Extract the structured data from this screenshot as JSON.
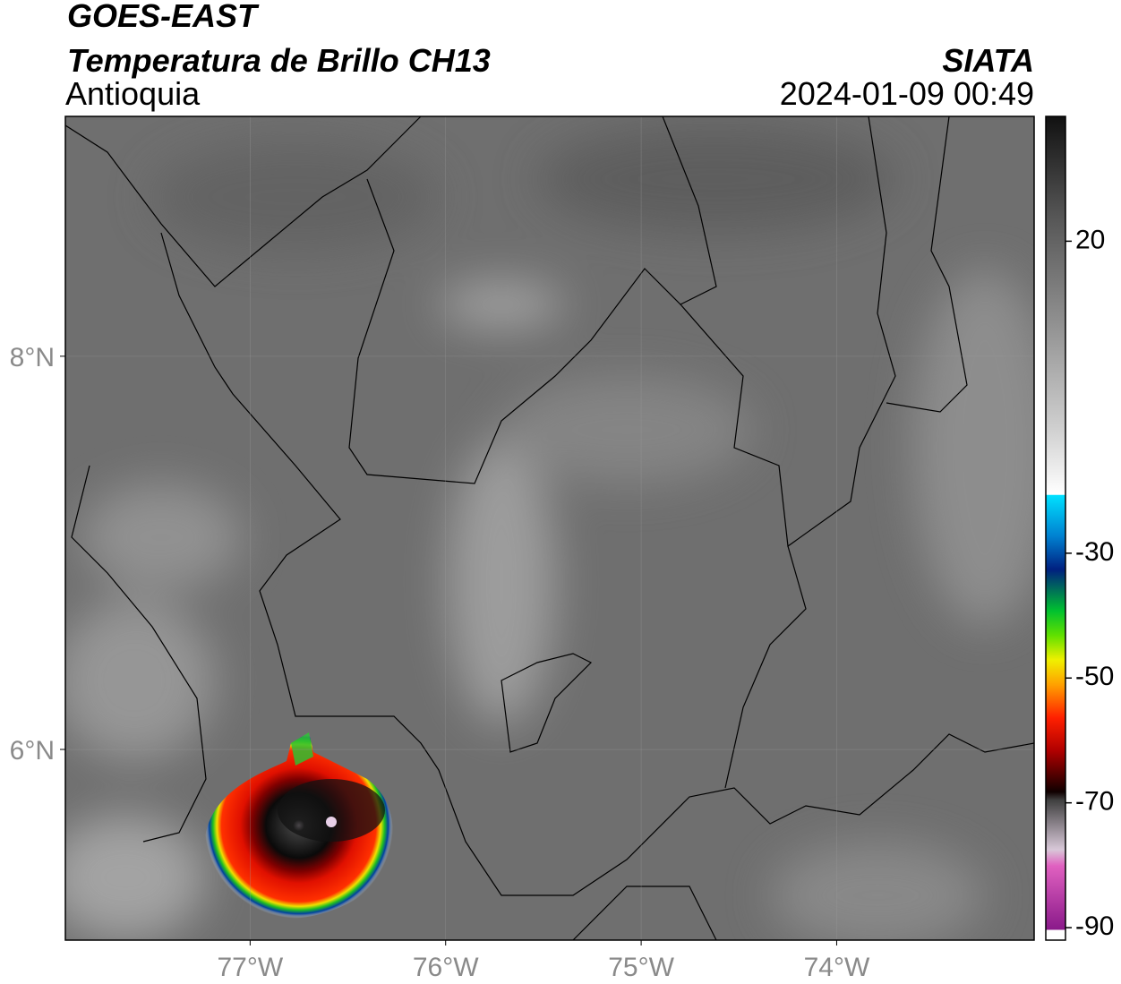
{
  "header": {
    "title": "GOES-EAST",
    "subtitle": "Temperatura de Brillo CH13",
    "region": "Antioquia",
    "source": "SIATA",
    "datetime": "2024-01-09 00:49"
  },
  "map": {
    "xlim": [
      -77.945,
      -72.99
    ],
    "ylim": [
      5.03,
      9.22
    ],
    "xticks": [
      {
        "value": -77,
        "label": "77°W"
      },
      {
        "value": -76,
        "label": "76°W"
      },
      {
        "value": -75,
        "label": "75°W"
      },
      {
        "value": -74,
        "label": "74°W"
      }
    ],
    "yticks": [
      {
        "value": 8,
        "label": "8°N"
      },
      {
        "value": 6,
        "label": "6°N"
      }
    ]
  },
  "colorbar": {
    "lim": [
      -92,
      40
    ],
    "ticks": [
      20,
      -30,
      -50,
      -70,
      -90
    ]
  }
}
